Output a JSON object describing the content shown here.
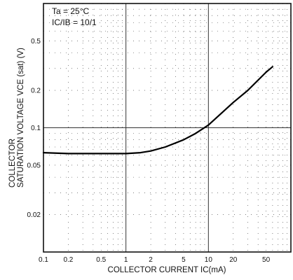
{
  "chart_data": {
    "type": "line",
    "conditions": [
      "Ta = 25°C",
      "IC/IB = 10/1"
    ],
    "xlabel": "COLLECTOR CURRENT  IC(mA)",
    "ylabel_line1": "COLLECTOR",
    "ylabel_line2": "SATURATION VOLTAGE VCE (sat) (V)",
    "x_scale": "log",
    "y_scale": "log",
    "xlim": [
      0.1,
      100
    ],
    "ylim": [
      0.01,
      1
    ],
    "grid": true,
    "x_ticks": [
      {
        "value": 0.1,
        "label": "0.1"
      },
      {
        "value": 0.2,
        "label": "0.2"
      },
      {
        "value": 0.5,
        "label": "0.5"
      },
      {
        "value": 1,
        "label": "1"
      },
      {
        "value": 2,
        "label": "2"
      },
      {
        "value": 5,
        "label": "5"
      },
      {
        "value": 10,
        "label": "10"
      },
      {
        "value": 20,
        "label": "20"
      },
      {
        "value": 50,
        "label": "50"
      }
    ],
    "y_ticks": [
      {
        "value": 0.5,
        "label": "0.5"
      },
      {
        "value": 0.2,
        "label": "0.2"
      },
      {
        "value": 0.1,
        "label": "0.1"
      },
      {
        "value": 0.05,
        "label": "0.05"
      },
      {
        "value": 0.02,
        "label": "0.02"
      }
    ],
    "x": [
      0.1,
      0.2,
      0.5,
      1,
      1.5,
      2,
      3,
      5,
      7,
      10,
      20,
      30,
      50,
      60
    ],
    "y": [
      0.063,
      0.062,
      0.062,
      0.062,
      0.063,
      0.065,
      0.07,
      0.08,
      0.09,
      0.105,
      0.16,
      0.2,
      0.28,
      0.31
    ]
  }
}
